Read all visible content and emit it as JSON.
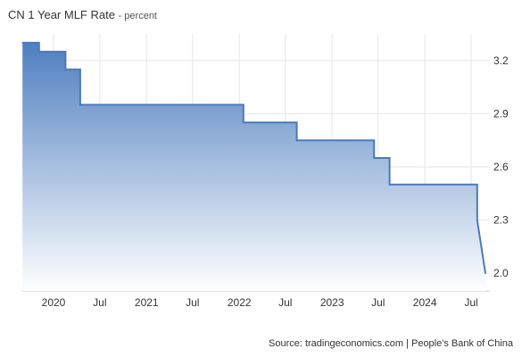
{
  "title": "CN 1 Year MLF Rate",
  "unit": "- percent",
  "source": "Source: tradingeconomics.com | People's Bank of China",
  "colors": {
    "line": "#4a7ab8",
    "fill_top": "#4f7fc0",
    "fill_bottom": "#ffffff",
    "grid": "#e6e6e6"
  },
  "chart_data": {
    "type": "area",
    "title": "CN 1 Year MLF Rate",
    "xlabel": "",
    "ylabel": "",
    "unit": "percent",
    "ylim": [
      1.9,
      3.35
    ],
    "yticks": [
      2.0,
      2.3,
      2.6,
      2.9,
      3.2
    ],
    "yticklabels": [
      "2.0",
      "2.3",
      "2.6",
      "2.9",
      "3.2"
    ],
    "xticks": [
      "2020-01-01",
      "2020-07-01",
      "2021-01-01",
      "2021-07-01",
      "2022-01-01",
      "2022-07-01",
      "2023-01-01",
      "2023-07-01",
      "2024-01-01",
      "2024-07-01"
    ],
    "xticklabels": [
      "2020",
      "Jul",
      "2021",
      "Jul",
      "2022",
      "Jul",
      "2023",
      "Jul",
      "2024",
      "Jul"
    ],
    "grid": true,
    "legend": "none",
    "step": true,
    "series": [
      {
        "x": [
          "2019-09-01",
          "2019-11-05",
          "2020-02-17",
          "2020-04-15",
          "2022-01-17",
          "2022-08-15",
          "2023-06-15",
          "2023-08-15",
          "2024-07-25",
          "2024-08-26"
        ],
        "y": [
          3.3,
          3.25,
          3.15,
          2.95,
          2.85,
          2.75,
          2.65,
          2.5,
          2.3,
          2.0
        ]
      }
    ]
  }
}
